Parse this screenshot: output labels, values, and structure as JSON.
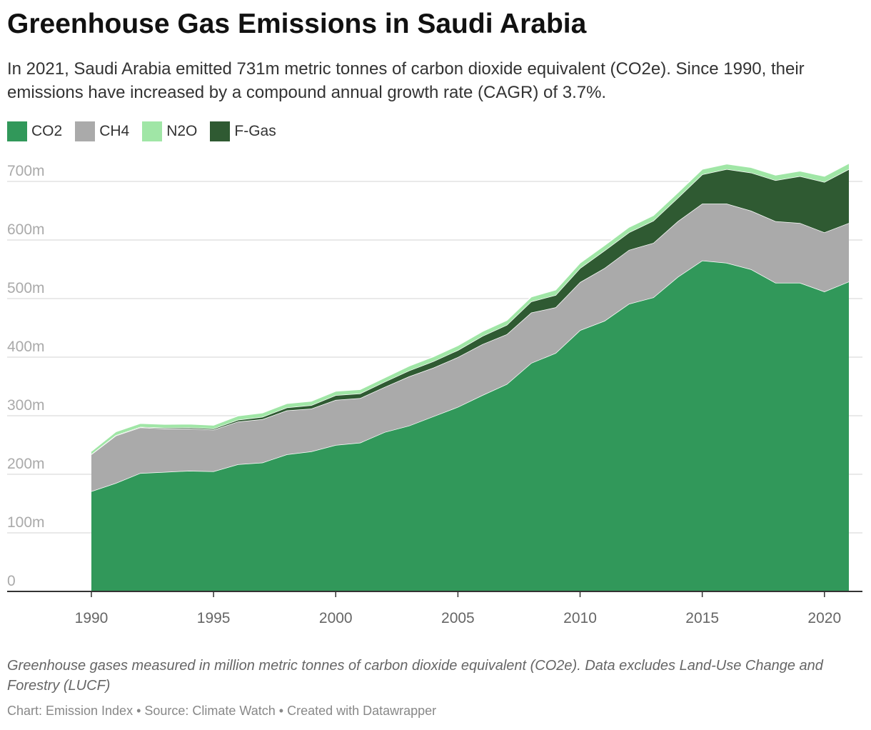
{
  "header": {
    "title": "Greenhouse Gas Emissions in Saudi Arabia",
    "subtitle": "In 2021, Saudi Arabia emitted 731m metric tonnes of carbon dioxide equivalent (CO2e). Since 1990, their emissions have increased by a compound annual growth rate (CAGR) of 3.7%."
  },
  "legend": [
    {
      "label": "CO2",
      "color": "#31985a"
    },
    {
      "label": "CH4",
      "color": "#aaaaaa"
    },
    {
      "label": "N2O",
      "color": "#a0e6a6"
    },
    {
      "label": "F-Gas",
      "color": "#2f5a32"
    }
  ],
  "footer": {
    "notes": "Greenhouse gases measured in million metric tonnes of carbon dioxide equivalent (CO2e). Data excludes Land-Use Change and Forestry (LUCF)",
    "credit": "Chart: Emission Index • Source: Climate Watch • Created with Datawrapper"
  },
  "chart_data": {
    "type": "area",
    "stacked": true,
    "title": "Greenhouse Gas Emissions in Saudi Arabia",
    "xlabel": "",
    "ylabel": "",
    "xlim": [
      1990,
      2021
    ],
    "ylim": [
      0,
      730
    ],
    "grid": true,
    "legend_position": "top-left",
    "x_ticks": [
      "1990",
      "1995",
      "2000",
      "2005",
      "2010",
      "2015",
      "2020"
    ],
    "y_ticks": [
      "0",
      "100m",
      "200m",
      "300m",
      "400m",
      "500m",
      "600m",
      "700m"
    ],
    "x": [
      1990,
      1991,
      1992,
      1993,
      1994,
      1995,
      1996,
      1997,
      1998,
      1999,
      2000,
      2001,
      2002,
      2003,
      2004,
      2005,
      2006,
      2007,
      2008,
      2009,
      2010,
      2011,
      2012,
      2013,
      2014,
      2015,
      2016,
      2017,
      2018,
      2019,
      2020,
      2021
    ],
    "series": [
      {
        "name": "CO2",
        "color": "#31985a",
        "values": [
          171,
          185,
          202,
          204,
          206,
          205,
          217,
          220,
          234,
          239,
          250,
          254,
          272,
          283,
          299,
          315,
          335,
          354,
          390,
          407,
          446,
          462,
          491,
          502,
          537,
          565,
          561,
          550,
          527,
          527,
          512,
          529
        ]
      },
      {
        "name": "CH4",
        "color": "#aaaaaa",
        "values": [
          63,
          81,
          78,
          74,
          72,
          71,
          73,
          74,
          75,
          73,
          77,
          76,
          77,
          84,
          83,
          85,
          87,
          85,
          86,
          78,
          82,
          90,
          92,
          93,
          95,
          97,
          101,
          100,
          105,
          102,
          101,
          100
        ]
      },
      {
        "name": "F-Gas",
        "color": "#2f5a32",
        "values": [
          0.5,
          0.8,
          1,
          1.5,
          2,
          2,
          3,
          4,
          5,
          6,
          8,
          8,
          9,
          10,
          11,
          12,
          14,
          16,
          19,
          21,
          24,
          30,
          30,
          38,
          40,
          50,
          59,
          65,
          70,
          80,
          86,
          92
        ]
      },
      {
        "name": "N2O",
        "color": "#a0e6a6",
        "values": [
          5,
          6,
          6,
          6,
          6,
          6,
          7,
          7,
          7,
          7,
          7,
          7,
          7,
          8,
          8,
          8,
          8,
          8,
          8,
          9,
          9,
          9,
          9,
          9,
          9,
          9,
          9,
          9,
          9,
          9,
          10,
          10
        ]
      }
    ]
  }
}
